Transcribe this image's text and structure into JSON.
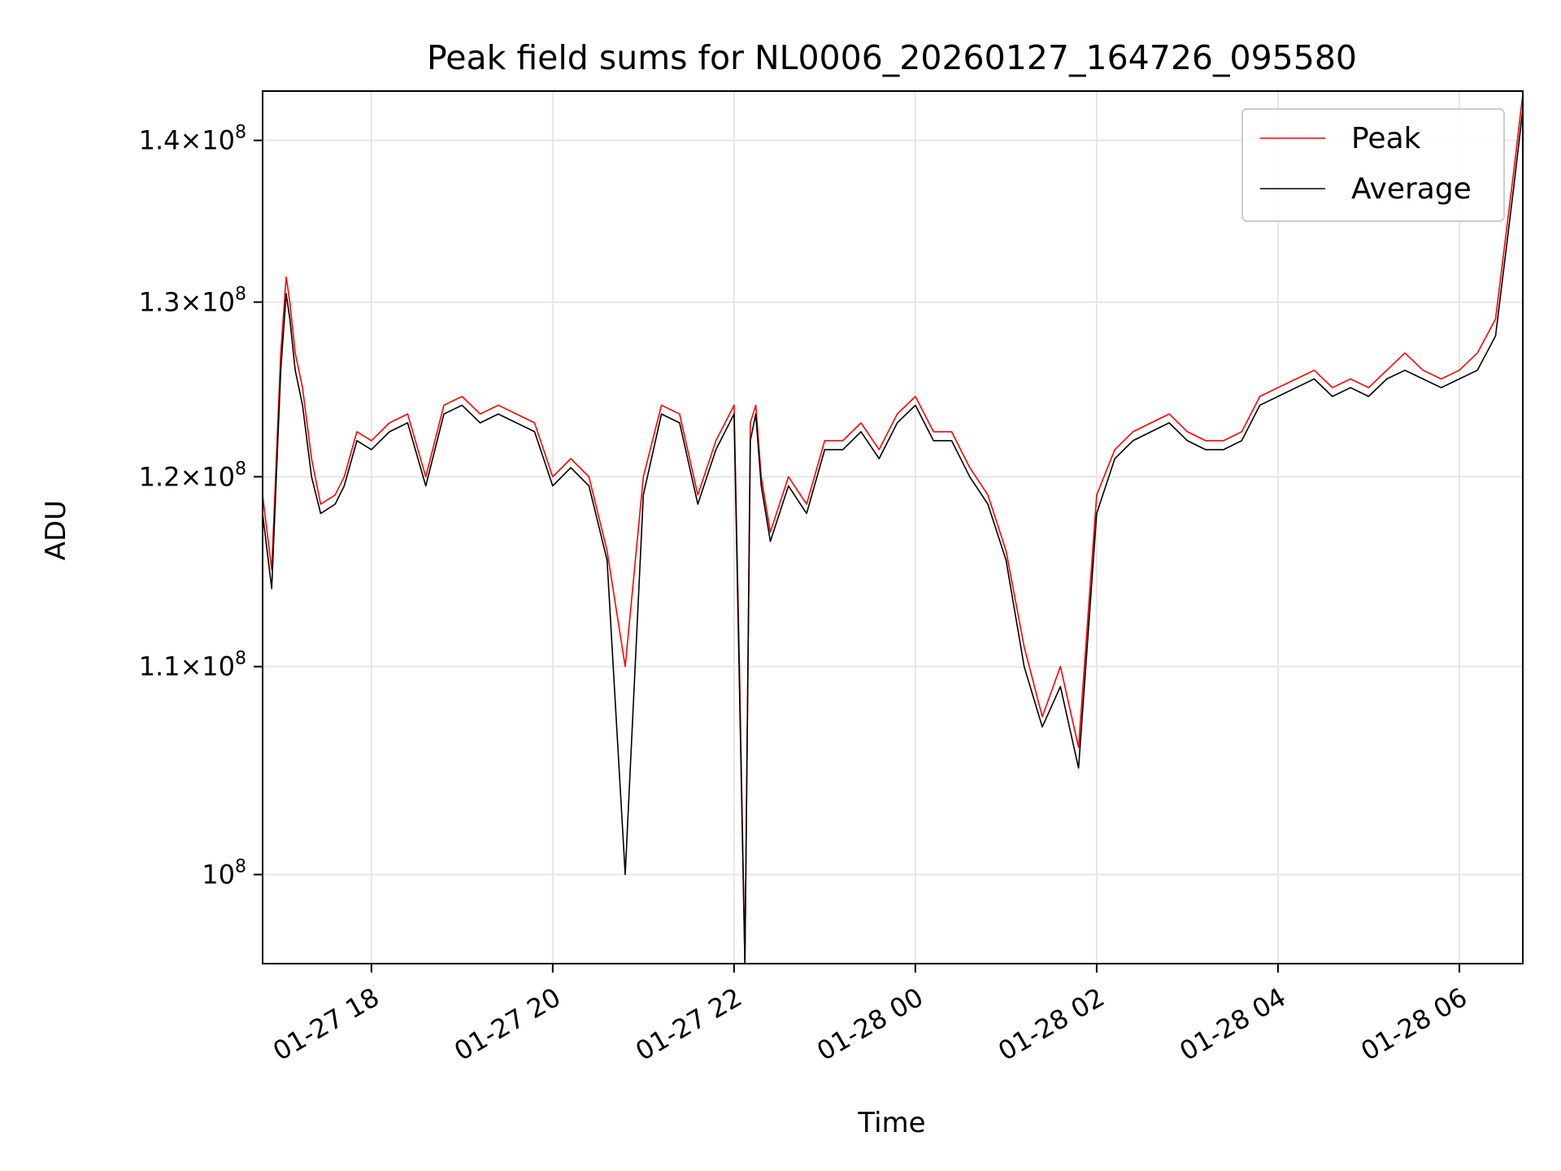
{
  "chart_data": {
    "type": "line",
    "title": "Peak field sums for NL0006_20260127_164726_095580",
    "xlabel": "Time",
    "ylabel": "ADU",
    "yscale": "log",
    "grid": true,
    "legend_position": "top-right",
    "xlim": [
      -0.6,
      6.35
    ],
    "ylim": [
      96000000.0,
      143200000.0
    ],
    "x_ticks": [
      {
        "value": 0,
        "label": "01-27 18"
      },
      {
        "value": 1,
        "label": "01-27 20"
      },
      {
        "value": 2,
        "label": "01-27 22"
      },
      {
        "value": 3,
        "label": "01-28 00"
      },
      {
        "value": 4,
        "label": "01-28 02"
      },
      {
        "value": 5,
        "label": "01-28 04"
      },
      {
        "value": 6,
        "label": "01-28 06"
      }
    ],
    "y_ticks": [
      {
        "value": 100000000.0,
        "mantissa": "",
        "exponent": "8"
      },
      {
        "value": 110000000.0,
        "mantissa": "1.1",
        "exponent": "8"
      },
      {
        "value": 120000000.0,
        "mantissa": "1.2",
        "exponent": "8"
      },
      {
        "value": 130000000.0,
        "mantissa": "1.3",
        "exponent": "8"
      },
      {
        "value": 140000000.0,
        "mantissa": "1.4",
        "exponent": "8"
      }
    ],
    "x_unit_note": "x values are hours after 2026-01-27 18:00 (2-hour tick spacing = 1 unit)",
    "series": [
      {
        "name": "Peak",
        "color": "#ff0000",
        "x": [
          -0.6,
          -0.55,
          -0.5,
          -0.47,
          -0.45,
          -0.42,
          -0.38,
          -0.33,
          -0.28,
          -0.2,
          -0.15,
          -0.08,
          0.0,
          0.1,
          0.2,
          0.3,
          0.4,
          0.5,
          0.6,
          0.7,
          0.8,
          0.9,
          1.0,
          1.1,
          1.2,
          1.3,
          1.4,
          1.5,
          1.6,
          1.7,
          1.8,
          1.9,
          2.0,
          2.03,
          2.06,
          2.09,
          2.12,
          2.15,
          2.2,
          2.3,
          2.4,
          2.5,
          2.6,
          2.7,
          2.8,
          2.9,
          3.0,
          3.1,
          3.2,
          3.3,
          3.4,
          3.5,
          3.6,
          3.7,
          3.8,
          3.9,
          4.0,
          4.1,
          4.2,
          4.3,
          4.4,
          4.5,
          4.6,
          4.7,
          4.8,
          4.9,
          5.0,
          5.1,
          5.2,
          5.3,
          5.4,
          5.5,
          5.6,
          5.7,
          5.8,
          5.9,
          6.0,
          6.1,
          6.2,
          6.3,
          6.35
        ],
        "y": [
          119000000.0,
          115000000.0,
          127000000.0,
          131500000.0,
          130000000.0,
          127000000.0,
          125000000.0,
          121000000.0,
          118500000.0,
          119000000.0,
          120000000.0,
          122500000.0,
          122000000.0,
          123000000.0,
          123500000.0,
          120000000.0,
          124000000.0,
          124500000.0,
          123500000.0,
          124000000.0,
          123500000.0,
          123000000.0,
          120000000.0,
          121000000.0,
          120000000.0,
          116000000.0,
          110000000.0,
          120000000.0,
          124000000.0,
          123500000.0,
          119000000.0,
          122000000.0,
          124000000.0,
          110000000.0,
          96000000.0,
          123000000.0,
          124000000.0,
          120000000.0,
          117000000.0,
          120000000.0,
          118500000.0,
          122000000.0,
          122000000.0,
          123000000.0,
          121500000.0,
          123500000.0,
          124500000.0,
          122500000.0,
          122500000.0,
          120500000.0,
          119000000.0,
          116000000.0,
          111000000.0,
          107500000.0,
          110000000.0,
          106000000.0,
          119000000.0,
          121500000.0,
          122500000.0,
          123000000.0,
          123500000.0,
          122500000.0,
          122000000.0,
          122000000.0,
          122500000.0,
          124500000.0,
          125000000.0,
          125500000.0,
          126000000.0,
          125000000.0,
          125500000.0,
          125000000.0,
          126000000.0,
          127000000.0,
          126000000.0,
          125500000.0,
          126000000.0,
          127000000.0,
          129000000.0,
          138000000.0,
          143000000.0
        ]
      },
      {
        "name": "Average",
        "color": "#000000",
        "x": [
          -0.6,
          -0.55,
          -0.5,
          -0.47,
          -0.45,
          -0.42,
          -0.38,
          -0.33,
          -0.28,
          -0.2,
          -0.15,
          -0.08,
          0.0,
          0.1,
          0.2,
          0.3,
          0.4,
          0.5,
          0.6,
          0.7,
          0.8,
          0.9,
          1.0,
          1.1,
          1.2,
          1.3,
          1.4,
          1.5,
          1.6,
          1.7,
          1.8,
          1.9,
          2.0,
          2.03,
          2.06,
          2.09,
          2.12,
          2.15,
          2.2,
          2.3,
          2.4,
          2.5,
          2.6,
          2.7,
          2.8,
          2.9,
          3.0,
          3.1,
          3.2,
          3.3,
          3.4,
          3.5,
          3.6,
          3.7,
          3.8,
          3.9,
          4.0,
          4.1,
          4.2,
          4.3,
          4.4,
          4.5,
          4.6,
          4.7,
          4.8,
          4.9,
          5.0,
          5.1,
          5.2,
          5.3,
          5.4,
          5.5,
          5.6,
          5.7,
          5.8,
          5.9,
          6.0,
          6.1,
          6.2,
          6.3,
          6.35
        ],
        "y": [
          118000000.0,
          114000000.0,
          126000000.0,
          130500000.0,
          129000000.0,
          126000000.0,
          124000000.0,
          120000000.0,
          118000000.0,
          118500000.0,
          119500000.0,
          122000000.0,
          121500000.0,
          122500000.0,
          123000000.0,
          119500000.0,
          123500000.0,
          124000000.0,
          123000000.0,
          123500000.0,
          123000000.0,
          122500000.0,
          119500000.0,
          120500000.0,
          119500000.0,
          115500000.0,
          100000000.0,
          119000000.0,
          123500000.0,
          123000000.0,
          118500000.0,
          121500000.0,
          123500000.0,
          109000000.0,
          96000000.0,
          122000000.0,
          123500000.0,
          119500000.0,
          116500000.0,
          119500000.0,
          118000000.0,
          121500000.0,
          121500000.0,
          122500000.0,
          121000000.0,
          123000000.0,
          124000000.0,
          122000000.0,
          122000000.0,
          120000000.0,
          118500000.0,
          115500000.0,
          110000000.0,
          107000000.0,
          109000000.0,
          105000000.0,
          118000000.0,
          121000000.0,
          122000000.0,
          122500000.0,
          123000000.0,
          122000000.0,
          121500000.0,
          121500000.0,
          122000000.0,
          124000000.0,
          124500000.0,
          125000000.0,
          125500000.0,
          124500000.0,
          125000000.0,
          124500000.0,
          125500000.0,
          126000000.0,
          125500000.0,
          125000000.0,
          125500000.0,
          126000000.0,
          128000000.0,
          137000000.0,
          142000000.0
        ]
      }
    ]
  }
}
